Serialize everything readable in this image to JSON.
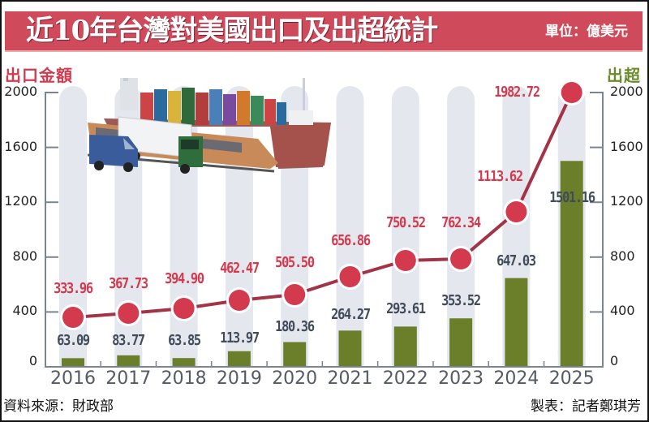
{
  "header": {
    "title": "近10年台灣對美國出口及出超統計",
    "unit": "單位：億美元"
  },
  "axes": {
    "left_title": "出口金額",
    "right_title": "出超",
    "left_ticks": [
      "2000",
      "1600",
      "1200",
      "800",
      "400",
      "0"
    ],
    "right_ticks": [
      "2000",
      "1600",
      "1200",
      "800",
      "400",
      "0"
    ]
  },
  "years": [
    "2016",
    "2017",
    "2018",
    "2019",
    "2020",
    "2021",
    "2022",
    "2023",
    "2024",
    "2025"
  ],
  "export_labels": [
    "333.96",
    "367.73",
    "394.90",
    "462.47",
    "505.50",
    "656.86",
    "750.52",
    "762.34",
    "1113.62",
    "1982.72"
  ],
  "surplus_labels": [
    "63.09",
    "83.77",
    "63.85",
    "113.97",
    "180.36",
    "264.27",
    "293.61",
    "353.52",
    "647.03",
    "1501.16"
  ],
  "footer": {
    "source": "資料來源：財政部",
    "credit": "製表：記者鄭琪芳"
  },
  "illustration": {
    "icons": [
      "container-ship-icon",
      "train-icon",
      "truck-icon",
      "van-icon"
    ]
  },
  "colors": {
    "title_bg": "#cf4a5a",
    "export_line": "#a33346",
    "export_dot": "#d33a4e",
    "surplus_bar": "#6b7e2a",
    "bar_track": "#e4e7ee",
    "axis": "#7a8594",
    "surplus_label": "#414b5a"
  },
  "chart_data": {
    "type": "bar+line",
    "title": "近10年台灣對美國出口及出超統計",
    "subtitle": "單位：億美元",
    "categories": [
      "2016",
      "2017",
      "2018",
      "2019",
      "2020",
      "2021",
      "2022",
      "2023",
      "2024",
      "2025"
    ],
    "series": [
      {
        "name": "出口金額",
        "type": "line",
        "axis": "left",
        "color": "#d33a4e",
        "values": [
          333.96,
          367.73,
          394.9,
          462.47,
          505.5,
          656.86,
          750.52,
          762.34,
          1113.62,
          1982.72
        ]
      },
      {
        "name": "出超",
        "type": "bar",
        "axis": "right",
        "color": "#6b7e2a",
        "values": [
          63.09,
          83.77,
          63.85,
          113.97,
          180.36,
          264.27,
          293.61,
          353.52,
          647.03,
          1501.16
        ]
      }
    ],
    "ylabel_left": "出口金額",
    "ylabel_right": "出超",
    "ylim_left": [
      0,
      2000
    ],
    "ylim_right": [
      0,
      2000
    ],
    "yticks": [
      0,
      400,
      800,
      1200,
      1600,
      2000
    ],
    "grid": false,
    "legend": "axis titles at top-left (出口金額, red) and top-right (出超, green)",
    "source": "資料來源：財政部",
    "credit": "製表：記者鄭琪芳"
  }
}
